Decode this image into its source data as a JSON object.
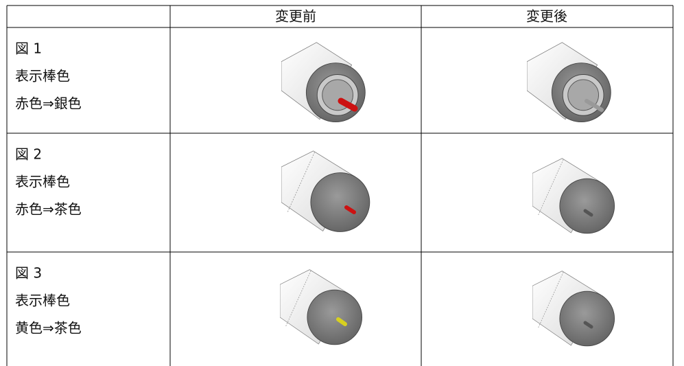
{
  "table": {
    "header": [
      "変更前",
      "変更後"
    ],
    "rows": [
      {
        "label": [
          "図 1",
          "表示棒色",
          "赤色⇒銀色"
        ]
      },
      {
        "label": [
          "図 2",
          "表示棒色",
          "赤色⇒茶色"
        ]
      },
      {
        "label": [
          "図 3",
          "表示棒色",
          "黄色⇒茶色"
        ]
      }
    ]
  }
}
